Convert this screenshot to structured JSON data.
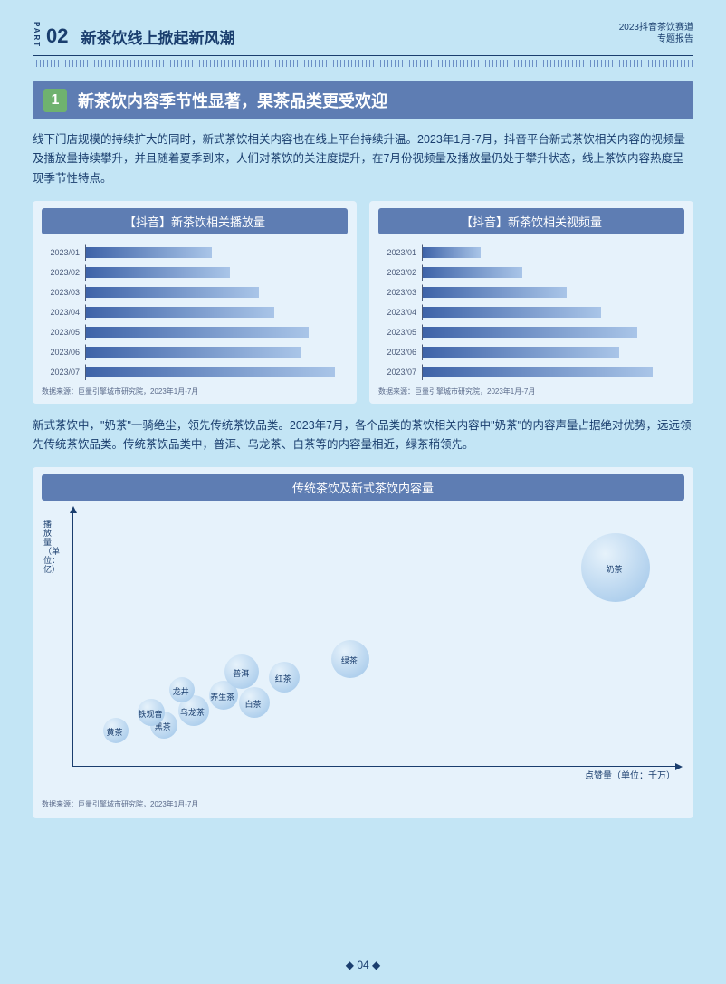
{
  "header": {
    "part_label": "PART",
    "part_num": "02",
    "part_title": "新茶饮线上掀起新风潮",
    "report_line1": "2023抖音茶饮赛道",
    "report_line2": "专题报告"
  },
  "section": {
    "num": "1",
    "title": "新茶饮内容季节性显著，果茶品类更受欢迎"
  },
  "para1": "线下门店规模的持续扩大的同时，新式茶饮相关内容也在线上平台持续升温。2023年1月-7月，抖音平台新式茶饮相关内容的视频量及播放量持续攀升，并且随着夏季到来，人们对茶饮的关注度提升，在7月份视频量及播放量仍处于攀升状态，线上茶饮内容热度呈现季节性特点。",
  "chart_left": {
    "title": "【抖音】新茶饮相关播放量",
    "type": "bar",
    "orientation": "horizontal",
    "categories": [
      "2023/01",
      "2023/02",
      "2023/03",
      "2023/04",
      "2023/05",
      "2023/06",
      "2023/07"
    ],
    "values": [
      48,
      55,
      66,
      72,
      85,
      82,
      95
    ],
    "bar_gradient_from": "#3e63a8",
    "bar_gradient_to": "#a9c5e8",
    "label_fontsize": 9,
    "label_color": "#4a5a7a",
    "axis_color": "#4a5a7a",
    "background_color": "#e6f2fb",
    "source": "数据来源：巨量引擎城市研究院，2023年1月-7月"
  },
  "chart_right": {
    "title": "【抖音】新茶饮相关视频量",
    "type": "bar",
    "orientation": "horizontal",
    "categories": [
      "2023/01",
      "2023/02",
      "2023/03",
      "2023/04",
      "2023/05",
      "2023/06",
      "2023/07"
    ],
    "values": [
      22,
      38,
      55,
      68,
      82,
      75,
      88
    ],
    "bar_gradient_from": "#3e63a8",
    "bar_gradient_to": "#a9c5e8",
    "label_fontsize": 9,
    "label_color": "#4a5a7a",
    "axis_color": "#4a5a7a",
    "background_color": "#e6f2fb",
    "source": "数据来源：巨量引擎城市研究院，2023年1月-7月"
  },
  "para2": "新式茶饮中，\"奶茶\"一骑绝尘，领先传统茶饮品类。2023年7月，各个品类的茶饮相关内容中\"奶茶\"的内容声量占据绝对优势，远远领先传统茶饮品类。传统茶饮品类中，普洱、乌龙茶、白茶等的内容量相近，绿茶稍领先。",
  "scatter": {
    "title": "传统茶饮及新式茶饮内容量",
    "type": "bubble",
    "x_label": "点赞量（单位：千万）",
    "y_label": "播放量（单位：亿）",
    "axis_color": "#1a3e6e",
    "background_color": "#e6f2fb",
    "bubble_gradient_from": "#9dc4e8",
    "bubble_gradient_to": "#e6f2fb",
    "bubbles": [
      {
        "label": "黄茶",
        "x": 7,
        "y": 14,
        "r": 14
      },
      {
        "label": "黑茶",
        "x": 15,
        "y": 16,
        "r": 15
      },
      {
        "label": "铁观音",
        "x": 13,
        "y": 21,
        "r": 15
      },
      {
        "label": "乌龙茶",
        "x": 20,
        "y": 22,
        "r": 17
      },
      {
        "label": "龙井",
        "x": 18,
        "y": 30,
        "r": 14
      },
      {
        "label": "养生茶",
        "x": 25,
        "y": 28,
        "r": 16
      },
      {
        "label": "白茶",
        "x": 30,
        "y": 25,
        "r": 17
      },
      {
        "label": "普洱",
        "x": 28,
        "y": 37,
        "r": 19
      },
      {
        "label": "红茶",
        "x": 35,
        "y": 35,
        "r": 17
      },
      {
        "label": "绿茶",
        "x": 46,
        "y": 42,
        "r": 21
      },
      {
        "label": "奶茶",
        "x": 90,
        "y": 78,
        "r": 38
      }
    ],
    "xlim": [
      0,
      100
    ],
    "ylim": [
      0,
      100
    ],
    "source": "数据来源：巨量引擎城市研究院，2023年1月-7月"
  },
  "page_num": "04",
  "colors": {
    "page_bg": "#c3e5f5",
    "banner_bg": "#5e7db3",
    "green_badge": "#6fb26f",
    "panel_bg": "#e6f2fb",
    "text_dark": "#1a3e6e"
  }
}
